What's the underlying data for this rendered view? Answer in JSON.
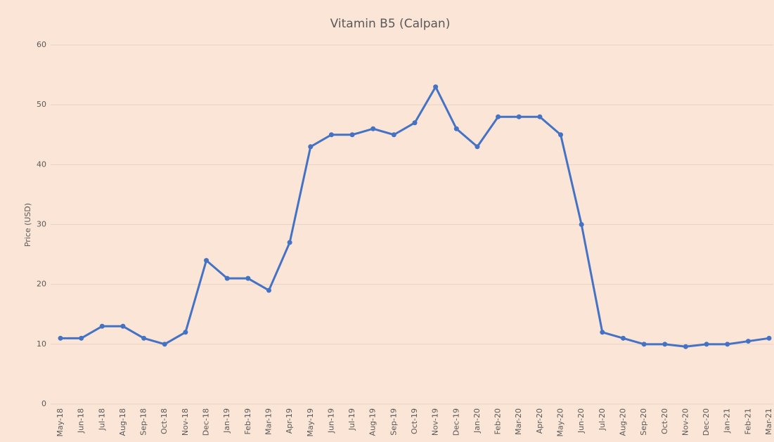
{
  "chart_data": {
    "type": "line",
    "title": "Vitamin B5 (Calpan)",
    "y_label": "Price (USD)",
    "categories": [
      "May-18",
      "Jun-18",
      "Jul-18",
      "Aug-18",
      "Sep-18",
      "Oct-18",
      "Nov-18",
      "Dec-18",
      "Jan-19",
      "Feb-19",
      "Mar-19",
      "Apr-19",
      "May-19",
      "Jun-19",
      "Jul-19",
      "Aug-19",
      "Sep-19",
      "Oct-19",
      "Nov-19",
      "Dec-19",
      "Jan-20",
      "Feb-20",
      "Mar-20",
      "Apr-20",
      "May-20",
      "Jun-20",
      "Jul-20",
      "Aug-20",
      "Sep-20",
      "Oct-20",
      "Nov-20",
      "Dec-20",
      "Jan-21",
      "Feb-21",
      "Mar-21"
    ],
    "series": [
      {
        "name": "Vitamin B5 (Calpan)",
        "color": "#4472c4",
        "values": [
          11,
          11,
          13,
          13,
          11,
          10,
          12,
          24,
          21,
          21,
          19,
          27,
          43,
          45,
          45,
          46,
          45,
          47,
          53,
          46,
          43,
          48,
          48,
          48,
          45,
          30,
          12,
          11,
          10,
          10,
          9.6,
          10,
          10,
          10.5,
          11
        ]
      }
    ],
    "ylim": [
      0,
      60
    ],
    "yticks": [
      0,
      10,
      20,
      30,
      40,
      50,
      60
    ],
    "grid": true
  }
}
